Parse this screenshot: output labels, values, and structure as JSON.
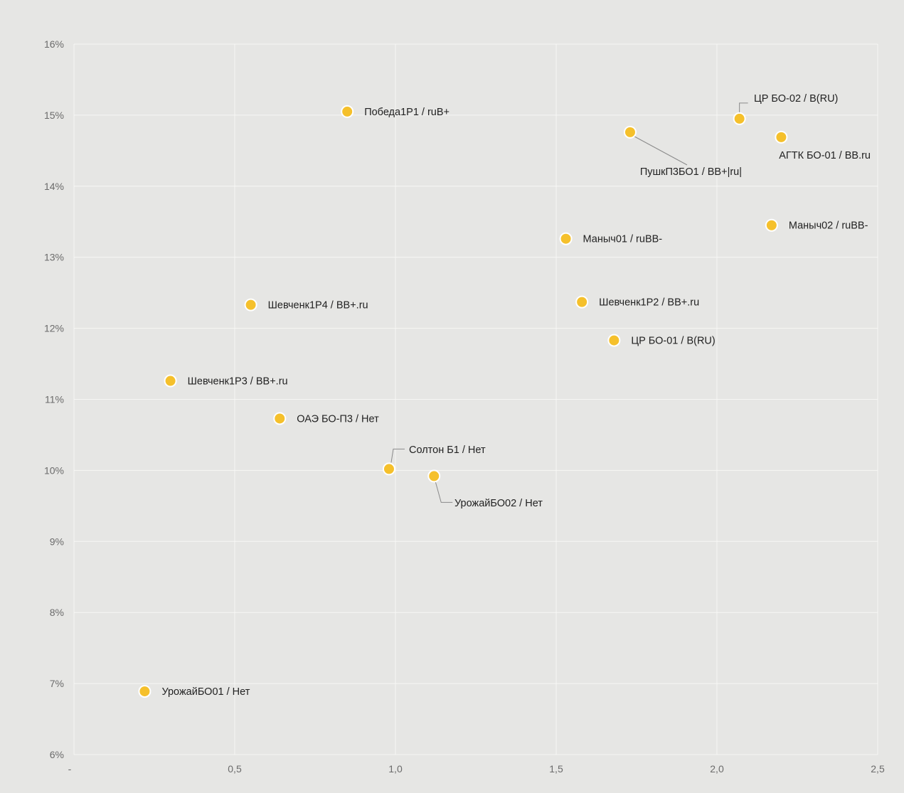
{
  "chart_data": {
    "type": "scatter",
    "title": "",
    "xlabel": "",
    "ylabel": "",
    "xlim": [
      0,
      2.5
    ],
    "ylim": [
      6,
      16
    ],
    "x_ticks": [
      "-",
      "0,5",
      "1,0",
      "1,5",
      "2,0",
      "2,5"
    ],
    "y_ticks": [
      "6%",
      "7%",
      "8%",
      "9%",
      "10%",
      "11%",
      "12%",
      "13%",
      "14%",
      "15%",
      "16%"
    ],
    "grid": true,
    "legend": "none",
    "point_color": "#f5c02b",
    "points": [
      {
        "label": "Победа1Р1 / ruB+",
        "x": 0.85,
        "y": 15.05
      },
      {
        "label": "ЦР БО-02 / B(RU)",
        "x": 2.07,
        "y": 14.95
      },
      {
        "label": "ПушкП3БО1 / BB+|ru|",
        "x": 1.73,
        "y": 14.76
      },
      {
        "label": "АГТК БО-01 / BB.ru",
        "x": 2.2,
        "y": 14.69
      },
      {
        "label": "Маныч02 / ruBB-",
        "x": 2.17,
        "y": 13.45
      },
      {
        "label": "Маныч01 / ruBB-",
        "x": 1.53,
        "y": 13.26
      },
      {
        "label": "Шевченк1Р4 / BB+.ru",
        "x": 0.55,
        "y": 12.33
      },
      {
        "label": "Шевченк1Р2 / BB+.ru",
        "x": 1.58,
        "y": 12.37
      },
      {
        "label": "ЦР БО-01 / B(RU)",
        "x": 1.68,
        "y": 11.83
      },
      {
        "label": "Шевченк1Р3 / BB+.ru",
        "x": 0.3,
        "y": 11.26
      },
      {
        "label": "ОАЭ  БО-П3 / Нет",
        "x": 0.64,
        "y": 10.73
      },
      {
        "label": "Солтон Б1 / Нет",
        "x": 0.98,
        "y": 10.02
      },
      {
        "label": "УрожайБО02 / Нет",
        "x": 1.12,
        "y": 9.92
      },
      {
        "label": "УрожайБО01 / Нет",
        "x": 0.22,
        "y": 6.89
      }
    ]
  }
}
